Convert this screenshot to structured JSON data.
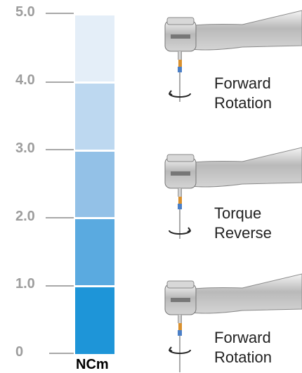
{
  "scale": {
    "labels": [
      "5.0",
      "4.0",
      "3.0",
      "2.0",
      "1.0",
      "0"
    ],
    "unit": "NCm"
  },
  "segments": [
    {
      "from": 0,
      "to": 1,
      "color": "#1e95d8"
    },
    {
      "from": 1,
      "to": 2,
      "color": "#5aaae0"
    },
    {
      "from": 2,
      "to": 3,
      "color": "#93c1e7"
    },
    {
      "from": 3,
      "to": 4,
      "color": "#bdd8f0"
    },
    {
      "from": 4,
      "to": 5,
      "color": "#e4eef8"
    }
  ],
  "captions": [
    {
      "line1": "Forward",
      "line2": "Rotation"
    },
    {
      "line1": "Torque",
      "line2": "Reverse"
    },
    {
      "line1": "Forward",
      "line2": "Rotation"
    }
  ],
  "icons": [
    "handpiece-icon",
    "rotation-arrow-icon"
  ]
}
